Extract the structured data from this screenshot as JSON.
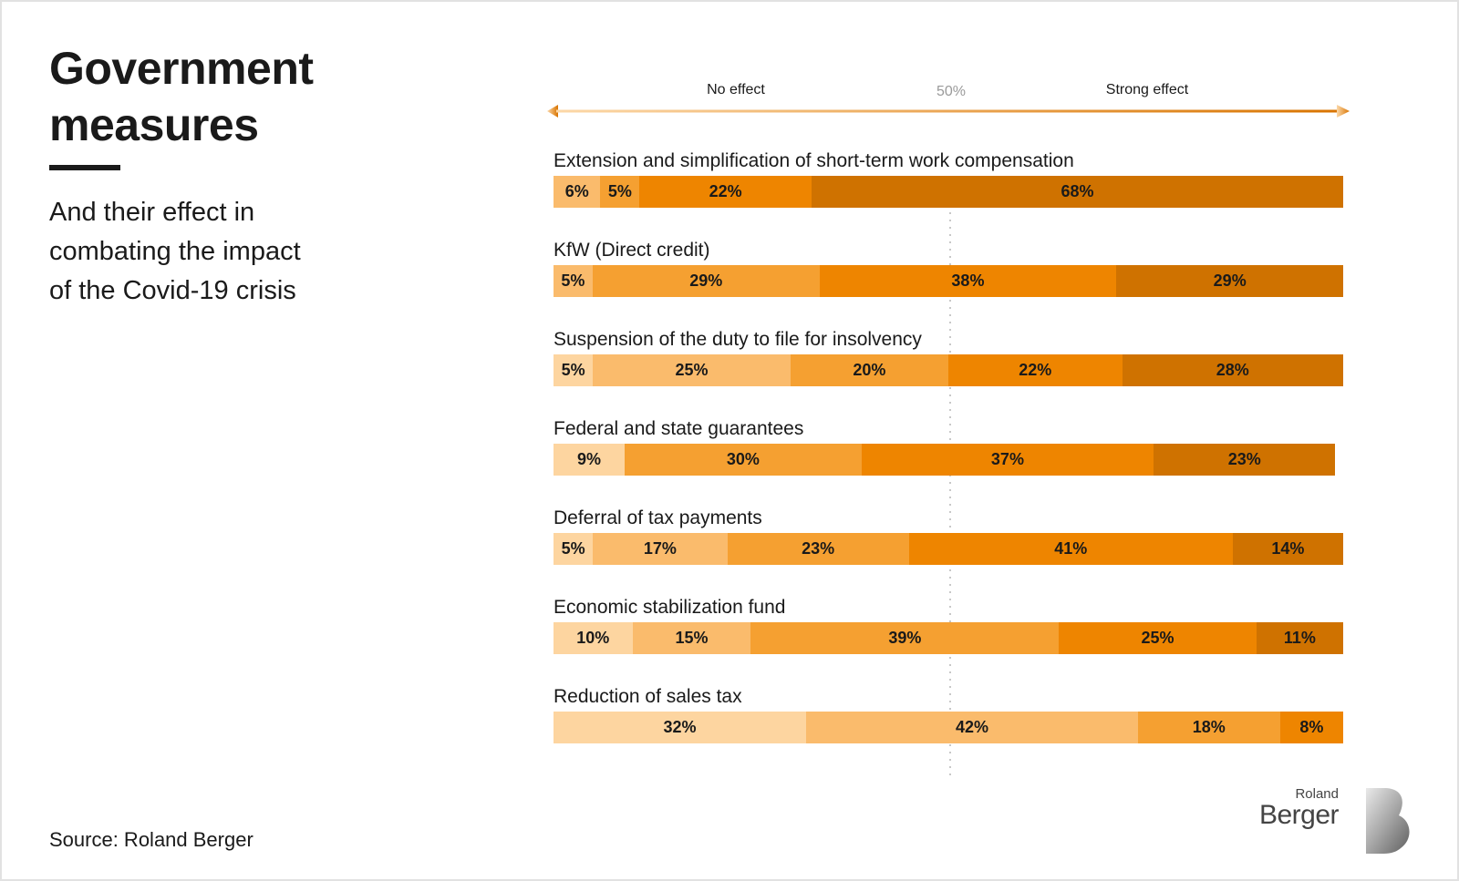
{
  "header": {
    "title": "Government\nmeasures",
    "subtitle": "And their effect in\ncombating the impact\nof the Covid-19 crisis"
  },
  "scale": {
    "left_label": "No effect",
    "mid_label": "50%",
    "right_label": "Strong effect"
  },
  "source": "Source: Roland Berger",
  "logo": {
    "small": "Roland",
    "big": "Berger"
  },
  "colors": {
    "level1": "#fdd5a0",
    "level2": "#fabb6c",
    "level3": "#f5a031",
    "level4": "#ee8500",
    "level5": "#cf7200",
    "arrow_start": "#fcd8a8",
    "arrow_end": "#d97400"
  },
  "chart_data": {
    "type": "bar",
    "stacked": true,
    "orientation": "horizontal",
    "ylim": [
      0,
      100
    ],
    "categories": [
      "Extension and simplification of short-term work compensation",
      "KfW (Direct credit)",
      "Suspension of the duty to file for insolvency",
      "Federal and state guarantees",
      "Deferral of tax payments",
      "Economic stabilization fund",
      "Reduction of sales tax"
    ],
    "series": [
      {
        "color_key": "level1",
        "values": [
          0,
          0,
          5,
          9,
          5,
          10,
          32
        ]
      },
      {
        "color_key": "level2",
        "values": [
          6,
          5,
          25,
          0,
          17,
          15,
          42
        ]
      },
      {
        "color_key": "level3",
        "values": [
          5,
          29,
          20,
          30,
          23,
          39,
          18
        ]
      },
      {
        "color_key": "level4",
        "values": [
          22,
          38,
          22,
          37,
          41,
          25,
          8
        ]
      },
      {
        "color_key": "level5",
        "values": [
          68,
          29,
          28,
          23,
          14,
          11,
          0
        ]
      }
    ],
    "value_format": "{v}%"
  }
}
